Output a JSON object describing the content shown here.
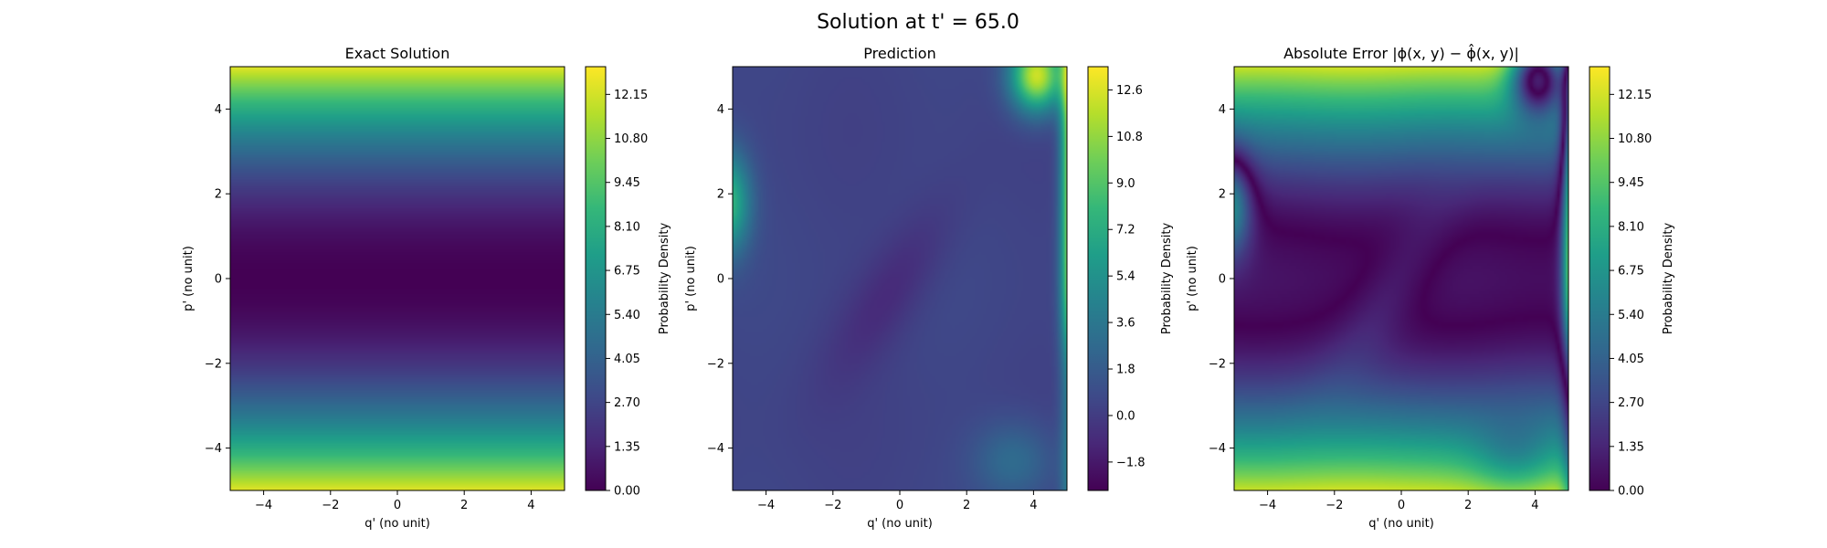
{
  "figure": {
    "suptitle": "Solution at t' = 65.0"
  },
  "colormap": [
    "#440154",
    "#482878",
    "#3e4a89",
    "#31688e",
    "#26828e",
    "#1f9e89",
    "#35b779",
    "#6ece58",
    "#b5de2b",
    "#fde725"
  ],
  "chart_data": [
    {
      "type": "heatmap",
      "title": "Exact Solution",
      "xlabel": "q' (no unit)",
      "ylabel": "p' (no unit)",
      "xlim": [
        -5,
        5
      ],
      "ylim": [
        -5,
        5
      ],
      "x_ticks": [
        -4,
        -2,
        0,
        2,
        4
      ],
      "y_ticks": [
        -4,
        -2,
        0,
        2,
        4
      ],
      "colorbar_label": "Probability Density",
      "colorbar_range": [
        0.0,
        13.0
      ],
      "colorbar_ticks": [
        "0.00",
        "1.35",
        "2.70",
        "4.05",
        "5.40",
        "6.75",
        "8.10",
        "9.45",
        "10.80",
        "12.15"
      ],
      "field": "0.5 * p'^2 (varies with p' only)"
    },
    {
      "type": "heatmap",
      "title": "Prediction",
      "xlabel": "q' (no unit)",
      "ylabel": "p' (no unit)",
      "xlim": [
        -5,
        5
      ],
      "ylim": [
        -5,
        5
      ],
      "x_ticks": [
        -4,
        -2,
        0,
        2,
        4
      ],
      "y_ticks": [
        -4,
        -2,
        0,
        2,
        4
      ],
      "colorbar_label": "Probability Density",
      "colorbar_range": [
        -2.9,
        13.5
      ],
      "colorbar_ticks": [
        "−1.8",
        "0.0",
        "1.8",
        "3.6",
        "5.4",
        "7.2",
        "9.0",
        "10.8",
        "12.6"
      ],
      "field": "smooth low plateau near 0, high ridge at the right edge (q' > 4.5) and a bright patch at the upper-left edge"
    },
    {
      "type": "heatmap",
      "title": "Absolute Error |ϕ(x, y) − ϕ̂(x, y)|",
      "xlabel": "q' (no unit)",
      "ylabel": "p' (no unit)",
      "xlim": [
        -5,
        5
      ],
      "ylim": [
        -5,
        5
      ],
      "x_ticks": [
        -4,
        -2,
        0,
        2,
        4
      ],
      "y_ticks": [
        -4,
        -2,
        0,
        2,
        4
      ],
      "colorbar_label": "Probability Density",
      "colorbar_range": [
        0.0,
        13.0
      ],
      "colorbar_ticks": [
        "0.00",
        "1.35",
        "2.70",
        "4.05",
        "5.40",
        "6.75",
        "8.10",
        "9.45",
        "10.80",
        "12.15"
      ],
      "field": "|exact − prediction|"
    }
  ]
}
